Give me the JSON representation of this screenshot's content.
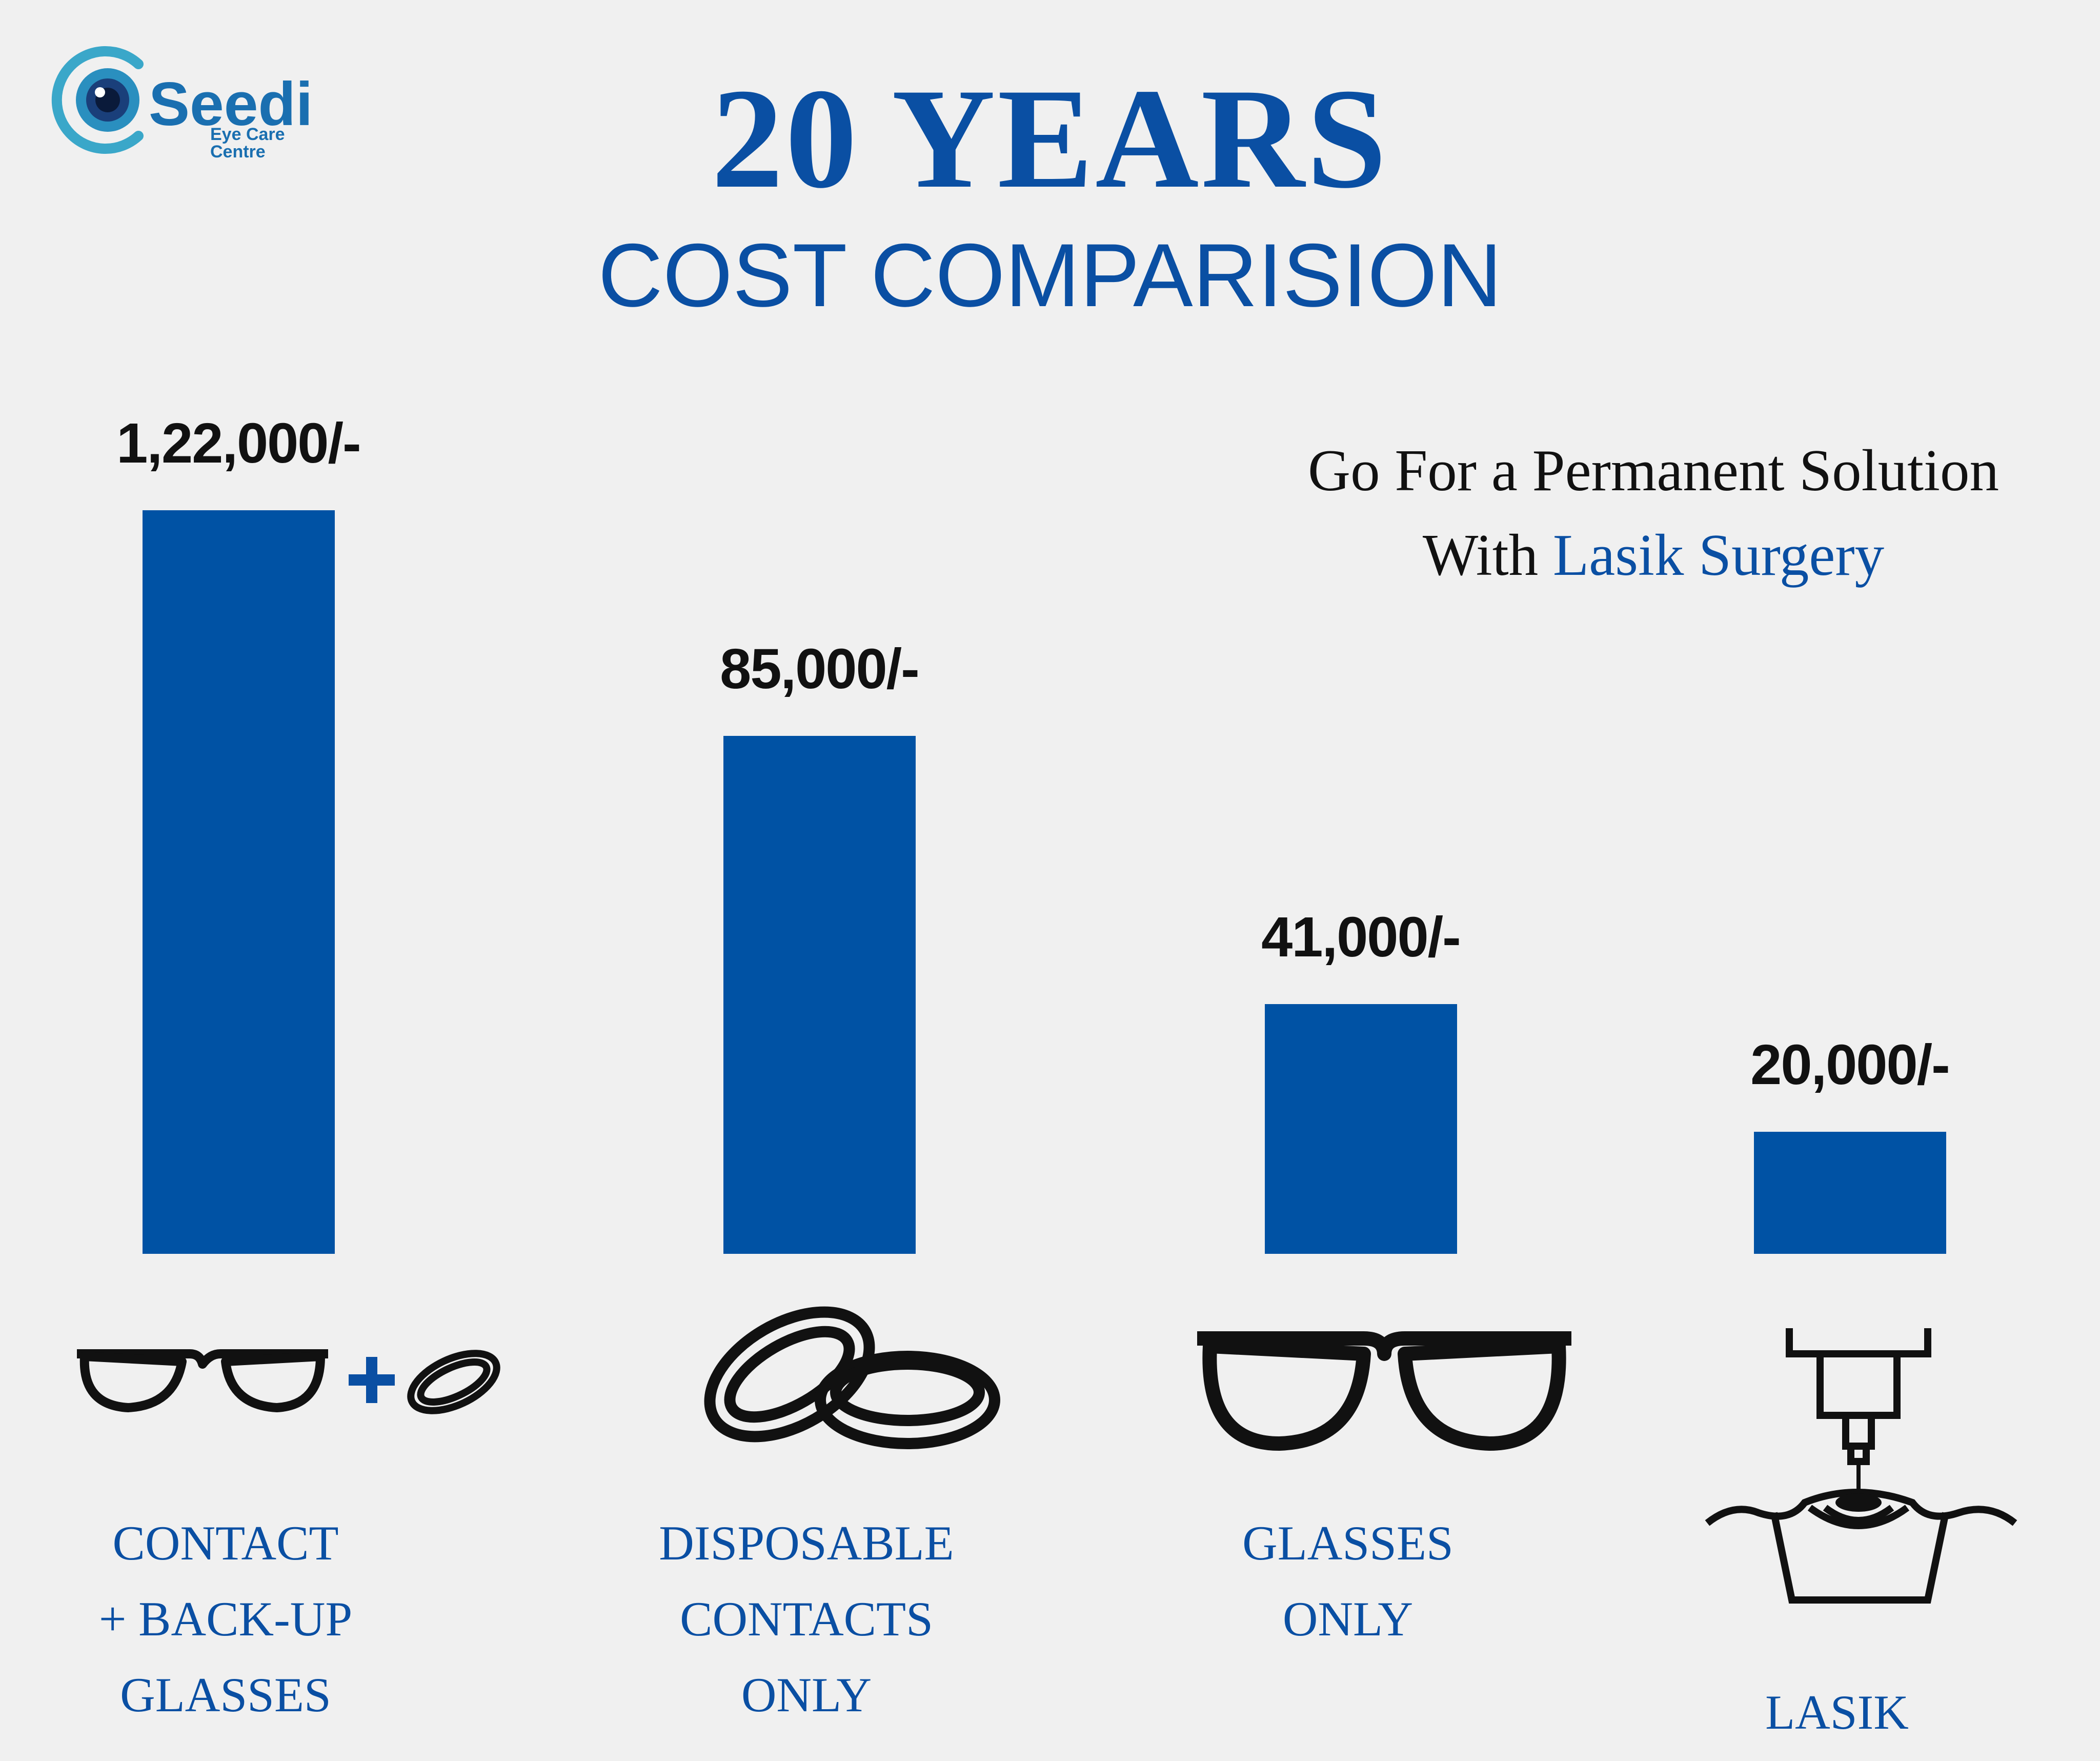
{
  "logo": {
    "word": "Seedi",
    "sub": "Eye Care Centre",
    "icon": "eye-logo-icon"
  },
  "title": "20 YEARS",
  "subtitle": "COST COMPARISION",
  "tagline": {
    "line1": "Go For a Permanent Solution",
    "line2_prefix": "With ",
    "line2_highlight": "Lasik Surgery"
  },
  "colors": {
    "bar": "#0052a4",
    "title": "#0a4fa3",
    "background": "#f0f0f0"
  },
  "chart_data": {
    "type": "bar",
    "categories": [
      "CONTACT + BACK-UP GLASSES",
      "DISPOSABLE CONTACTS ONLY",
      "GLASSES ONLY",
      "LASIK"
    ],
    "category_lines": [
      [
        "CONTACT",
        "+ BACK-UP",
        "GLASSES"
      ],
      [
        "DISPOSABLE",
        "CONTACTS",
        "ONLY"
      ],
      [
        "GLASSES",
        "ONLY"
      ],
      [
        "LASIK"
      ]
    ],
    "values": [
      122000,
      85000,
      41000,
      20000
    ],
    "value_labels": [
      "1,22,000/-",
      "85,000/-",
      "41,000/-",
      "20,000/-"
    ],
    "icons": [
      "glasses-plus-contacts-icon",
      "contact-lenses-icon",
      "glasses-icon",
      "lasik-laser-icon"
    ],
    "title": "20 YEARS",
    "subtitle": "COST COMPARISION",
    "xlabel": "",
    "ylabel": "",
    "grid": false,
    "legend": "none"
  }
}
